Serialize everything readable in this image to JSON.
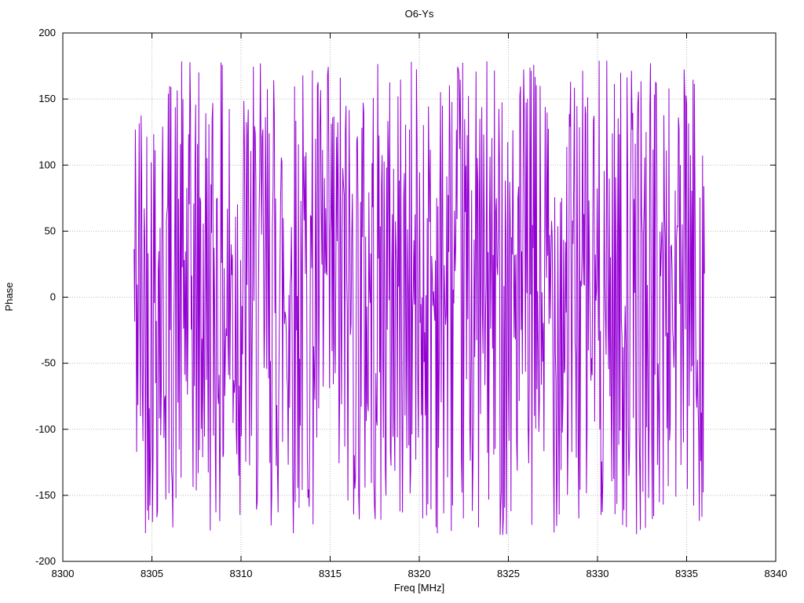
{
  "chart_data": {
    "type": "line",
    "title": "O6-Ys",
    "xlabel": "Freq [MHz]",
    "ylabel": "Phase",
    "xlim": [
      8300,
      8340
    ],
    "ylim": [
      -200,
      200
    ],
    "xticks": [
      8300,
      8305,
      8310,
      8315,
      8320,
      8325,
      8330,
      8335,
      8340
    ],
    "yticks": [
      -200,
      -150,
      -100,
      -50,
      0,
      50,
      100,
      150,
      200
    ],
    "grid": true,
    "legend_position": "none",
    "series": [
      {
        "name": "O6-Ys phase",
        "color": "#9400d3",
        "x_start": 8304.0,
        "x_end": 8336.0,
        "n_points": 900,
        "y_min": -180,
        "y_max": 180,
        "distribution": "uniform-random-wrapped-phase",
        "seed": 42
      }
    ]
  }
}
